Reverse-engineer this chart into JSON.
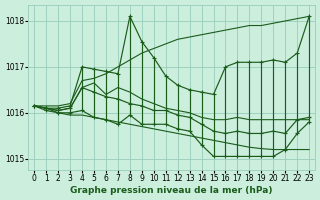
{
  "xlabel": "Graphe pression niveau de la mer (hPa)",
  "background_color": "#cceedd",
  "grid_color": "#99ccbb",
  "line_color": "#1a5c1a",
  "hours": [
    0,
    1,
    2,
    3,
    4,
    5,
    6,
    7,
    8,
    9,
    10,
    11,
    12,
    13,
    14,
    15,
    16,
    17,
    18,
    19,
    20,
    21,
    22,
    23
  ],
  "pressure_main": [
    1016.15,
    1016.1,
    1016.05,
    1016.1,
    1016.55,
    1016.65,
    1016.4,
    1016.55,
    1016.45,
    1016.3,
    1016.2,
    1016.1,
    1016.05,
    1016.0,
    1015.9,
    1015.85,
    1015.85,
    1015.9,
    1015.85,
    1015.85,
    1015.85,
    1015.85,
    1015.85,
    1015.85
  ],
  "envelope_upper": [
    1016.15,
    1016.15,
    1016.15,
    1016.2,
    1016.7,
    1016.75,
    1016.85,
    1017.0,
    1017.15,
    1017.3,
    1017.4,
    1017.5,
    1017.6,
    1017.65,
    1017.7,
    1017.75,
    1017.8,
    1017.85,
    1017.9,
    1017.9,
    1017.95,
    1018.0,
    1018.05,
    1018.1
  ],
  "envelope_lower": [
    1016.15,
    1016.1,
    1016.0,
    1015.95,
    1015.95,
    1015.9,
    1015.85,
    1015.8,
    1015.75,
    1015.7,
    1015.65,
    1015.6,
    1015.55,
    1015.5,
    1015.45,
    1015.4,
    1015.35,
    1015.3,
    1015.25,
    1015.22,
    1015.2,
    1015.2,
    1015.2,
    1015.2
  ],
  "data_high": [
    1016.15,
    1016.1,
    1016.1,
    1016.15,
    1017.0,
    1016.95,
    1016.9,
    1016.85,
    1018.1,
    1017.55,
    1017.2,
    1016.8,
    1016.6,
    1016.5,
    1016.45,
    1016.4,
    1017.0,
    1017.1,
    1017.1,
    1017.1,
    1017.15,
    1017.1,
    1017.3,
    1018.1
  ],
  "data_low": [
    1016.15,
    1016.05,
    1016.0,
    1016.0,
    1016.05,
    1015.9,
    1015.85,
    1015.75,
    1015.95,
    1015.75,
    1015.75,
    1015.75,
    1015.65,
    1015.6,
    1015.3,
    1015.05,
    1015.05,
    1015.05,
    1015.05,
    1015.05,
    1015.05,
    1015.2,
    1015.55,
    1015.8
  ],
  "data_mid": [
    1016.15,
    1016.1,
    1016.05,
    1016.1,
    1016.55,
    1016.45,
    1016.35,
    1016.3,
    1016.2,
    1016.15,
    1016.05,
    1016.05,
    1015.95,
    1015.9,
    1015.75,
    1015.6,
    1015.55,
    1015.6,
    1015.55,
    1015.55,
    1015.6,
    1015.55,
    1015.85,
    1015.9
  ],
  "ylim": [
    1014.75,
    1018.35
  ],
  "yticks": [
    1015,
    1016,
    1017,
    1018
  ],
  "xlabel_fontsize": 6.5,
  "tick_fontsize": 5.5
}
